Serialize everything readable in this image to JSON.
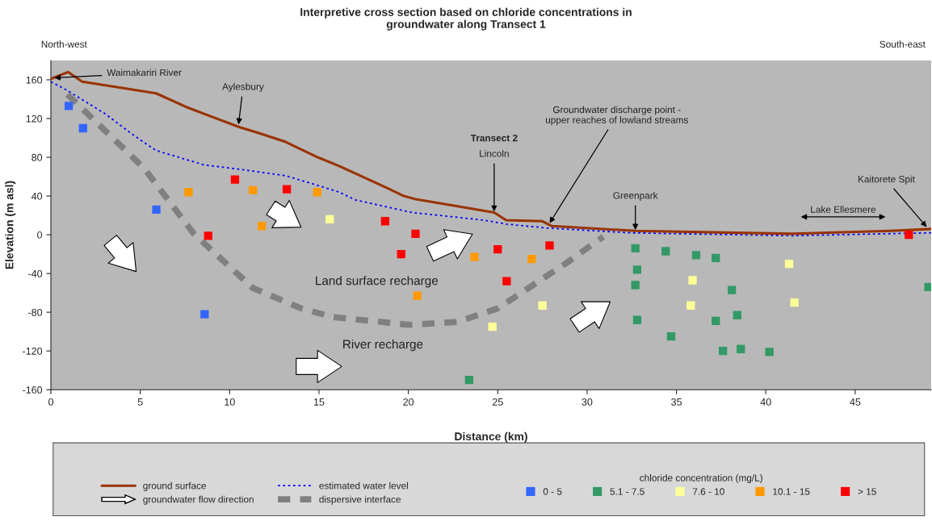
{
  "chart_data": {
    "type": "scatter",
    "title": "Interpretive cross section based on chloride concentrations in\ngroundwater along Transect 1",
    "xlabel": "Distance (km)",
    "ylabel": "Elevation (m asl)",
    "legend_title": "chloride concentration (mg/L)",
    "xlim": [
      0,
      49.25
    ],
    "ylim": [
      -160,
      180
    ],
    "xticks": [
      0,
      5,
      10,
      15,
      20,
      25,
      30,
      35,
      40,
      45
    ],
    "yticks": [
      -160,
      -120,
      -80,
      -40,
      0,
      40,
      80,
      120,
      160
    ],
    "grid": false,
    "legend": "bottom",
    "series": [
      {
        "name": "ground surface",
        "type": "line",
        "marker": "none",
        "line_style": "solid",
        "color": "#993300",
        "x": [
          0,
          0.96,
          1.75,
          3.48,
          5.89,
          7.7,
          10.56,
          11.46,
          13.12,
          14.93,
          16.13,
          18.84,
          19.75,
          20.35,
          24.8,
          25.47,
          27.5,
          28.03,
          32.7,
          41.44,
          47,
          49.25
        ],
        "values": [
          161,
          168,
          158,
          153,
          146,
          131,
          111,
          106,
          96,
          80,
          71,
          48,
          40,
          37,
          23,
          15,
          14,
          9,
          4,
          1,
          4,
          6
        ]
      },
      {
        "name": "estimated water level",
        "type": "line",
        "marker": "none",
        "line_style": "dotted",
        "color": "#0000ff",
        "x": [
          0,
          0.92,
          3.03,
          4.68,
          5.89,
          8.6,
          10.4,
          13.12,
          14.93,
          16.13,
          17.04,
          20.2,
          24.27,
          25.47,
          27.73,
          32.4,
          41.44,
          49.25
        ],
        "values": [
          158,
          149,
          125,
          102,
          87,
          72,
          68,
          61,
          51,
          44,
          36,
          23,
          15,
          11,
          7,
          2,
          -1,
          2
        ]
      },
      {
        "name": "dispersive interface",
        "type": "line",
        "marker": "none",
        "line_style": "dashed",
        "color": "#808080",
        "x": [
          0.92,
          5.2,
          8.0,
          11.3,
          14.0,
          15.8,
          20.05,
          22.76,
          25.0,
          28.78,
          30.9
        ],
        "values": [
          145,
          69,
          1,
          -55,
          -76,
          -85,
          -93,
          -90,
          -76,
          -30,
          -2
        ]
      },
      {
        "name": "0 - 5",
        "marker": "square",
        "color": "#3366ff",
        "x": [
          1.0,
          1.8,
          5.9,
          8.6
        ],
        "values": [
          133,
          110,
          26,
          -82
        ]
      },
      {
        "name": "5.1 - 7.5",
        "marker": "square",
        "color": "#339966",
        "x": [
          23.4,
          32.7,
          34.4,
          36.1,
          37.2,
          32.8,
          32.7,
          38.1,
          32.8,
          37.2,
          38.4,
          34.7,
          37.6,
          38.6,
          40.2,
          49.1
        ],
        "values": [
          -150,
          -14,
          -17,
          -21,
          -24,
          -36,
          -52,
          -57,
          -88,
          -89,
          -83,
          -105,
          -120,
          -118,
          -121,
          -54
        ]
      },
      {
        "name": "7.6 - 10",
        "marker": "square",
        "color": "#ffff99",
        "x": [
          15.6,
          24.7,
          27.5,
          35.9,
          35.8,
          41.3,
          41.6
        ],
        "values": [
          16,
          -95,
          -73,
          -47,
          -73,
          -30,
          -70
        ]
      },
      {
        "name": "10.1 - 15",
        "marker": "square",
        "color": "#ff9900",
        "x": [
          7.7,
          11.3,
          11.8,
          14.9,
          23.7,
          26.9,
          20.5
        ],
        "values": [
          44,
          46,
          9,
          44,
          -23,
          -25,
          -63
        ]
      },
      {
        "name": "> 15",
        "marker": "square",
        "color": "#ff0000",
        "x": [
          10.3,
          13.2,
          8.8,
          18.7,
          20.4,
          19.6,
          25.0,
          25.5,
          27.9,
          48.0
        ],
        "values": [
          57,
          47,
          -1,
          14,
          1,
          -20,
          -15,
          -48,
          -11,
          0
        ]
      }
    ],
    "annotations": [
      "North-west",
      "South-east",
      {
        "text": "Waimakariri River",
        "x": 0.2,
        "y": 162
      },
      {
        "text": "Aylesbury",
        "x": 10.5,
        "y": 114
      },
      "Transect 2",
      {
        "text": "Lincoln",
        "x": 24.8,
        "y": 24
      },
      {
        "text": "Groundwater discharge point -\nupper reaches of lowland streams",
        "x": 27.9,
        "y": 12
      },
      {
        "text": "Greenpark",
        "x": 32.7,
        "y": 5
      },
      "Lake Ellesmere",
      {
        "text": "Kaitorete Spit",
        "x": 49.0,
        "y": 8
      },
      "Land surface recharge",
      "River recharge",
      "groundwater flow direction"
    ]
  }
}
